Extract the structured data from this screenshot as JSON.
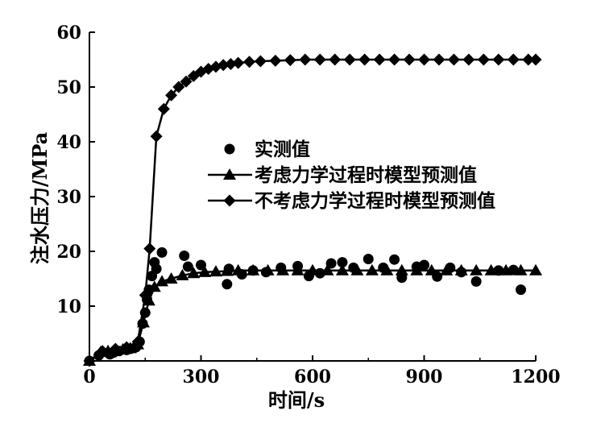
{
  "chart_data": {
    "type": "scatter",
    "title": "",
    "xlabel": "时间/s",
    "ylabel": "注水压力/MPa",
    "xlim": [
      0,
      1200
    ],
    "ylim": [
      0,
      60
    ],
    "xticks": [
      0,
      300,
      600,
      900,
      1200
    ],
    "yticks": [
      10,
      20,
      30,
      40,
      50,
      60
    ],
    "grid": false,
    "legend_position": "center-right",
    "series": [
      {
        "name": "实测值",
        "style": "markers",
        "marker": "circle",
        "points": [
          [
            0,
            0
          ],
          [
            25,
            1.0
          ],
          [
            55,
            1.2
          ],
          [
            65,
            1.5
          ],
          [
            80,
            1.8
          ],
          [
            100,
            2.0
          ],
          [
            110,
            2.2
          ],
          [
            125,
            2.5
          ],
          [
            135,
            3.5
          ],
          [
            143,
            6.8
          ],
          [
            150,
            8.8
          ],
          [
            155,
            11.2
          ],
          [
            160,
            13.0
          ],
          [
            168,
            15.5
          ],
          [
            175,
            18.0
          ],
          [
            180,
            16.8
          ],
          [
            195,
            19.8
          ],
          [
            255,
            19.2
          ],
          [
            265,
            17.2
          ],
          [
            300,
            17.5
          ],
          [
            370,
            14.0
          ],
          [
            375,
            16.8
          ],
          [
            410,
            15.8
          ],
          [
            440,
            16.5
          ],
          [
            475,
            16.2
          ],
          [
            515,
            17.0
          ],
          [
            560,
            17.3
          ],
          [
            590,
            15.5
          ],
          [
            620,
            16.0
          ],
          [
            650,
            17.8
          ],
          [
            680,
            18.0
          ],
          [
            710,
            17.0
          ],
          [
            750,
            18.6
          ],
          [
            790,
            17.0
          ],
          [
            820,
            18.5
          ],
          [
            840,
            15.2
          ],
          [
            880,
            17.2
          ],
          [
            900,
            17.5
          ],
          [
            935,
            15.4
          ],
          [
            970,
            17.0
          ],
          [
            1000,
            16.2
          ],
          [
            1040,
            14.5
          ],
          [
            1100,
            16.5
          ],
          [
            1140,
            16.6
          ],
          [
            1160,
            13.0
          ]
        ]
      },
      {
        "name": "考虑力学过程时模型预测值",
        "style": "line+markers",
        "marker": "triangle",
        "points": [
          [
            0,
            0
          ],
          [
            30,
            1.6
          ],
          [
            50,
            1.8
          ],
          [
            70,
            2.0
          ],
          [
            90,
            2.1
          ],
          [
            110,
            2.3
          ],
          [
            130,
            3.0
          ],
          [
            145,
            7.0
          ],
          [
            160,
            11.0
          ],
          [
            175,
            13.5
          ],
          [
            195,
            14.5
          ],
          [
            220,
            15.0
          ],
          [
            250,
            15.6
          ],
          [
            280,
            16.0
          ],
          [
            310,
            16.2
          ],
          [
            340,
            16.3
          ],
          [
            370,
            16.4
          ],
          [
            400,
            16.5
          ],
          [
            440,
            16.5
          ],
          [
            480,
            16.5
          ],
          [
            520,
            16.5
          ],
          [
            560,
            16.5
          ],
          [
            600,
            16.5
          ],
          [
            640,
            16.5
          ],
          [
            680,
            16.5
          ],
          [
            720,
            16.5
          ],
          [
            760,
            16.5
          ],
          [
            800,
            16.5
          ],
          [
            840,
            16.5
          ],
          [
            880,
            16.5
          ],
          [
            920,
            16.5
          ],
          [
            960,
            16.5
          ],
          [
            1000,
            16.5
          ],
          [
            1040,
            16.5
          ],
          [
            1080,
            16.5
          ],
          [
            1120,
            16.5
          ],
          [
            1160,
            16.5
          ],
          [
            1200,
            16.5
          ]
        ]
      },
      {
        "name": "不考虑力学过程时模型预测值",
        "style": "line+markers",
        "marker": "diamond",
        "points": [
          [
            0,
            0
          ],
          [
            35,
            1.8
          ],
          [
            70,
            2.2
          ],
          [
            100,
            2.5
          ],
          [
            130,
            3.5
          ],
          [
            150,
            12.0
          ],
          [
            162,
            20.5
          ],
          [
            180,
            41.0
          ],
          [
            200,
            46.0
          ],
          [
            220,
            48.5
          ],
          [
            240,
            50.0
          ],
          [
            260,
            51.0
          ],
          [
            280,
            52.0
          ],
          [
            300,
            52.8
          ],
          [
            320,
            53.3
          ],
          [
            340,
            53.7
          ],
          [
            360,
            54.0
          ],
          [
            380,
            54.2
          ],
          [
            400,
            54.4
          ],
          [
            430,
            54.6
          ],
          [
            460,
            54.7
          ],
          [
            500,
            54.8
          ],
          [
            540,
            54.9
          ],
          [
            580,
            55.0
          ],
          [
            620,
            55.0
          ],
          [
            660,
            55.0
          ],
          [
            700,
            55.0
          ],
          [
            740,
            55.0
          ],
          [
            780,
            55.0
          ],
          [
            820,
            55.0
          ],
          [
            860,
            55.0
          ],
          [
            900,
            55.0
          ],
          [
            940,
            55.0
          ],
          [
            980,
            55.0
          ],
          [
            1020,
            55.0
          ],
          [
            1060,
            55.0
          ],
          [
            1100,
            55.0
          ],
          [
            1140,
            55.0
          ],
          [
            1180,
            55.0
          ],
          [
            1200,
            55.0
          ]
        ]
      }
    ]
  }
}
